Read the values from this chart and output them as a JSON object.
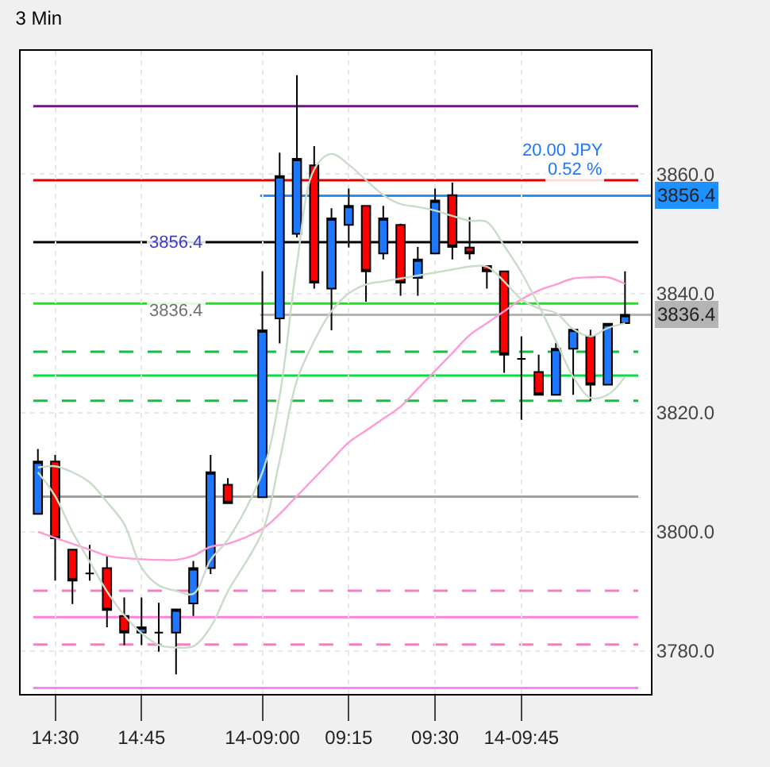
{
  "chart_data": {
    "type": "candlestick",
    "title": "3 Min",
    "categories": [
      null,
      "14:30",
      null,
      null,
      null,
      null,
      "14:45",
      null,
      null,
      null,
      null,
      null,
      null,
      "14-09:00",
      null,
      null,
      null,
      null,
      "09:15",
      null,
      null,
      null,
      null,
      "09:30",
      null,
      null,
      null,
      null,
      "14-09:45",
      null,
      null,
      null,
      null,
      null,
      null
    ],
    "ohlc": [
      [
        3803,
        3813.9,
        3803,
        3811.8
      ],
      [
        3811.8,
        3812.9,
        3791.8,
        3798.9
      ],
      [
        3797,
        3797,
        3787.9,
        3791.8
      ],
      [
        3793,
        3797.8,
        3791.8,
        3793
      ],
      [
        3793.9,
        3796.1,
        3784,
        3786.9
      ],
      [
        3785.9,
        3789,
        3781,
        3783.1
      ],
      [
        3783.1,
        3789,
        3781,
        3784
      ],
      [
        3783.1,
        3788.1,
        3779.9,
        3783.1
      ],
      [
        3783.1,
        3787,
        3776.1,
        3787
      ],
      [
        3788,
        3795.1,
        3785.9,
        3793.9
      ],
      [
        3793.9,
        3812.9,
        3792.9,
        3810
      ],
      [
        3807.9,
        3809,
        3804.8,
        3804.8
      ],
      null,
      [
        3805.8,
        3843.7,
        3805.8,
        3833.8
      ],
      [
        3835.8,
        3863.6,
        3831.6,
        3859.7
      ],
      [
        3850,
        3876.6,
        3849.4,
        3862.6
      ],
      [
        3861.5,
        3864.7,
        3840.8,
        3841.8
      ],
      [
        3840.8,
        3854.3,
        3833.8,
        3852.6
      ],
      [
        3851.5,
        3857.6,
        3847.7,
        3854.7
      ],
      [
        3854.7,
        3854.7,
        3838.6,
        3843.7
      ],
      [
        3846.7,
        3854.7,
        3845.7,
        3852.6
      ],
      [
        3851.5,
        3851.7,
        3839.6,
        3841.8
      ],
      [
        3842.6,
        3847.8,
        3839.6,
        3845.7
      ],
      [
        3846.7,
        3857.6,
        3846.7,
        3855.6
      ],
      [
        3856.5,
        3858.6,
        3845.7,
        3847.8
      ],
      [
        3847.7,
        3852.8,
        3845.7,
        3846.7
      ],
      [
        3844.6,
        3844.6,
        3840.8,
        3843.7
      ],
      [
        3843.7,
        3843.7,
        3826.7,
        3829.7
      ],
      [
        3829,
        3832.8,
        3818.8,
        3829
      ],
      [
        3826.8,
        3829.7,
        3823,
        3823
      ],
      [
        3823,
        3831.7,
        3823,
        3830.7
      ],
      [
        3830.7,
        3833.9,
        3823,
        3833.9
      ],
      [
        3832.8,
        3833.9,
        3822,
        3824.7
      ],
      [
        3824.7,
        3834.9,
        3824.7,
        3834.9
      ],
      [
        3835,
        3843.7,
        3835,
        3836.4
      ]
    ],
    "series": [
      {
        "type": "line",
        "color": "#ff9ad5",
        "values": [
          3800,
          3799,
          3798,
          3797,
          3796,
          3795.6,
          3795.4,
          3795.3,
          3795.3,
          3796,
          3797.5,
          3798,
          null,
          3800.5,
          3803,
          3806,
          3809,
          3812,
          3815,
          3817,
          3819,
          3821,
          3824,
          3827,
          3830,
          3833,
          3835,
          3837,
          3839,
          3840.5,
          3841.5,
          3842.5,
          3842.7,
          3842.7,
          3841.6
        ]
      },
      {
        "type": "line",
        "color": "#c8dcc8",
        "values": [
          3810.8,
          3811,
          3810,
          3808.3,
          3805,
          3801.3,
          3794,
          3791,
          3790.1,
          3789.6,
          3795.3,
          3798.7,
          null,
          3810,
          3822.8,
          3845,
          3860.8,
          3863.4,
          3861.6,
          3859,
          3856.5,
          3855,
          3854.5,
          3853.9,
          3853,
          3852.2,
          3852,
          3848,
          3843.5,
          3838,
          3832,
          3826,
          3822.5,
          3823,
          3826
        ]
      },
      {
        "type": "line",
        "color": "#c8dcc8",
        "values": [
          3810,
          3806,
          3800,
          3795,
          3790,
          3786,
          3783,
          3781,
          3780.6,
          3780.8,
          3784,
          3790,
          null,
          3800,
          3812,
          3825.4,
          3832,
          3837,
          3840,
          3841.5,
          3842,
          3842.5,
          3843,
          3843.5,
          3844,
          3844.5,
          3844.5,
          3842,
          3839,
          3837.5,
          3836.7,
          3834,
          3832.8,
          3834.2,
          3835
        ]
      }
    ],
    "ref_lines": [
      {
        "axis": "y",
        "value": 3871.4,
        "color": "#6a1a7a",
        "line_style": "solid"
      },
      {
        "axis": "y",
        "value": 3859,
        "color": "#e00000",
        "line_style": "solid"
      },
      {
        "axis": "y",
        "value": 3848.6,
        "color": "#000000",
        "line_style": "solid"
      },
      {
        "axis": "y",
        "value": 3838.3,
        "color": "#20e020",
        "line_style": "solid"
      },
      {
        "axis": "y",
        "value": 3830.2,
        "color": "#10c040",
        "line_style": "dashed"
      },
      {
        "axis": "y",
        "value": 3826.2,
        "color": "#00e040",
        "line_style": "solid"
      },
      {
        "axis": "y",
        "value": 3822,
        "color": "#10c040",
        "line_style": "dashed"
      },
      {
        "axis": "y",
        "value": 3805.9,
        "color": "#a0a0a0",
        "line_style": "solid"
      },
      {
        "axis": "y",
        "value": 3790.1,
        "color": "#f080c0",
        "line_style": "dashed"
      },
      {
        "axis": "y",
        "value": 3785.7,
        "color": "#ff80e0",
        "line_style": "solid"
      },
      {
        "axis": "y",
        "value": 3781.1,
        "color": "#f080c0",
        "line_style": "dashed"
      },
      {
        "axis": "y",
        "value": 3773.8,
        "color": "#ff80ff",
        "line_style": "solid"
      },
      {
        "axis": "y",
        "value": 3856.4,
        "label": "3856.4",
        "color": "#1e90ff",
        "line_style": "solid"
      },
      {
        "axis": "y",
        "value": 3836.4,
        "label": "3836.4",
        "color": "#b4b4b4",
        "line_style": "solid"
      }
    ],
    "annotations": [
      "20.00 JPY",
      "0.52 %",
      "3856.4",
      "3836.4"
    ],
    "ylim": [
      3772.8,
      3880.7
    ],
    "yticks": [
      {
        "value": 3780,
        "label": "3780.0"
      },
      {
        "value": 3800,
        "label": "3800.0"
      },
      {
        "value": 3820,
        "label": "3820.0"
      },
      {
        "value": 3840,
        "label": "3840.0"
      },
      {
        "value": 3860,
        "label": "3860.0"
      }
    ],
    "grid": true
  }
}
